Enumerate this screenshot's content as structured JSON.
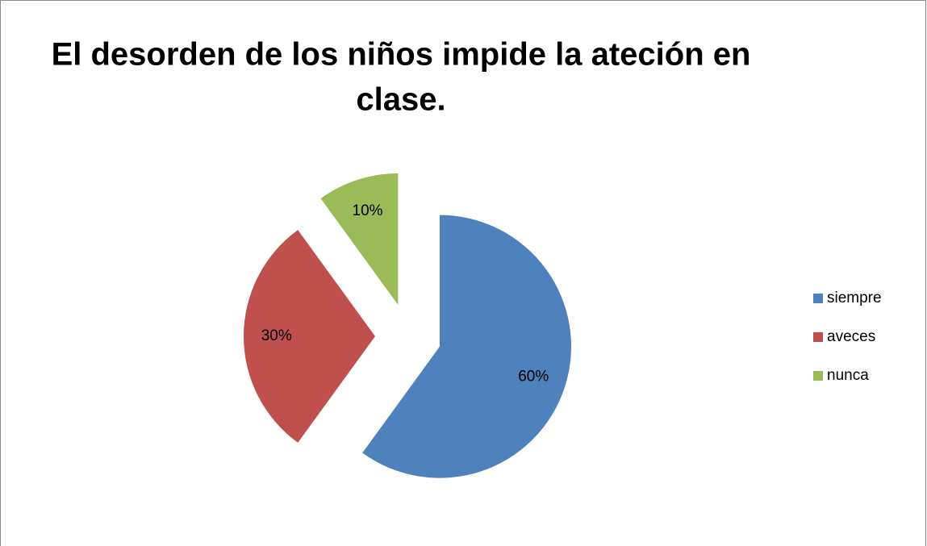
{
  "chart_data": {
    "type": "pie",
    "title": [
      "El desorden de los niños impide la ateción en",
      "clase."
    ],
    "categories": [
      "siempre",
      "aveces",
      "nunca"
    ],
    "values": [
      60,
      30,
      10
    ],
    "value_labels": [
      "60%",
      "30%",
      "10%"
    ],
    "colors": [
      "#4f81bd",
      "#c0504d",
      "#9bbb59"
    ],
    "exploded": true,
    "legend": "right"
  }
}
